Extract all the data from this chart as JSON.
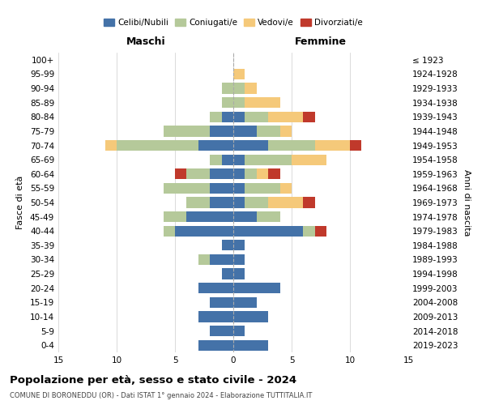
{
  "age_groups": [
    "100+",
    "95-99",
    "90-94",
    "85-89",
    "80-84",
    "75-79",
    "70-74",
    "65-69",
    "60-64",
    "55-59",
    "50-54",
    "45-49",
    "40-44",
    "35-39",
    "30-34",
    "25-29",
    "20-24",
    "15-19",
    "10-14",
    "5-9",
    "0-4"
  ],
  "year_labels": [
    "≤ 1923",
    "1924-1928",
    "1929-1933",
    "1934-1938",
    "1939-1943",
    "1944-1948",
    "1949-1953",
    "1954-1958",
    "1959-1963",
    "1964-1968",
    "1969-1973",
    "1974-1978",
    "1979-1983",
    "1984-1988",
    "1989-1993",
    "1994-1998",
    "1999-2003",
    "2004-2008",
    "2009-2013",
    "2014-2018",
    "2019-2023"
  ],
  "maschi": {
    "celibi": [
      0,
      0,
      0,
      0,
      1,
      2,
      3,
      1,
      2,
      2,
      2,
      4,
      5,
      1,
      2,
      1,
      3,
      2,
      3,
      2,
      3
    ],
    "coniugati": [
      0,
      0,
      1,
      1,
      1,
      4,
      7,
      1,
      2,
      4,
      2,
      2,
      1,
      0,
      1,
      0,
      0,
      0,
      0,
      0,
      0
    ],
    "vedovi": [
      0,
      0,
      0,
      0,
      0,
      0,
      1,
      0,
      0,
      0,
      0,
      0,
      0,
      0,
      0,
      0,
      0,
      0,
      0,
      0,
      0
    ],
    "divorziati": [
      0,
      0,
      0,
      0,
      0,
      0,
      0,
      0,
      1,
      0,
      0,
      0,
      0,
      0,
      0,
      0,
      0,
      0,
      0,
      0,
      0
    ]
  },
  "femmine": {
    "nubili": [
      0,
      0,
      0,
      0,
      1,
      2,
      3,
      1,
      1,
      1,
      1,
      2,
      6,
      1,
      1,
      1,
      4,
      2,
      3,
      1,
      3
    ],
    "coniugate": [
      0,
      0,
      1,
      1,
      2,
      2,
      4,
      4,
      1,
      3,
      2,
      2,
      1,
      0,
      0,
      0,
      0,
      0,
      0,
      0,
      0
    ],
    "vedove": [
      0,
      1,
      1,
      3,
      3,
      1,
      3,
      3,
      1,
      1,
      3,
      0,
      0,
      0,
      0,
      0,
      0,
      0,
      0,
      0,
      0
    ],
    "divorziate": [
      0,
      0,
      0,
      0,
      1,
      0,
      1,
      0,
      1,
      0,
      1,
      0,
      1,
      0,
      0,
      0,
      0,
      0,
      0,
      0,
      0
    ]
  },
  "colors": {
    "celibi_nubili": "#4472a8",
    "coniugati": "#b5c99a",
    "vedovi": "#f5c97a",
    "divorziati": "#c0392b"
  },
  "xlim": 15,
  "title": "Popolazione per età, sesso e stato civile - 2024",
  "subtitle": "COMUNE DI BORONEDDU (OR) - Dati ISTAT 1° gennaio 2024 - Elaborazione TUTTITALIA.IT",
  "ylabel_left": "Fasce di età",
  "ylabel_right": "Anni di nascita",
  "xlabel_maschi": "Maschi",
  "xlabel_femmine": "Femmine",
  "legend_labels": [
    "Celibi/Nubili",
    "Coniugati/e",
    "Vedovi/e",
    "Divorziati/e"
  ],
  "background_color": "#ffffff",
  "grid_color": "#cccccc"
}
